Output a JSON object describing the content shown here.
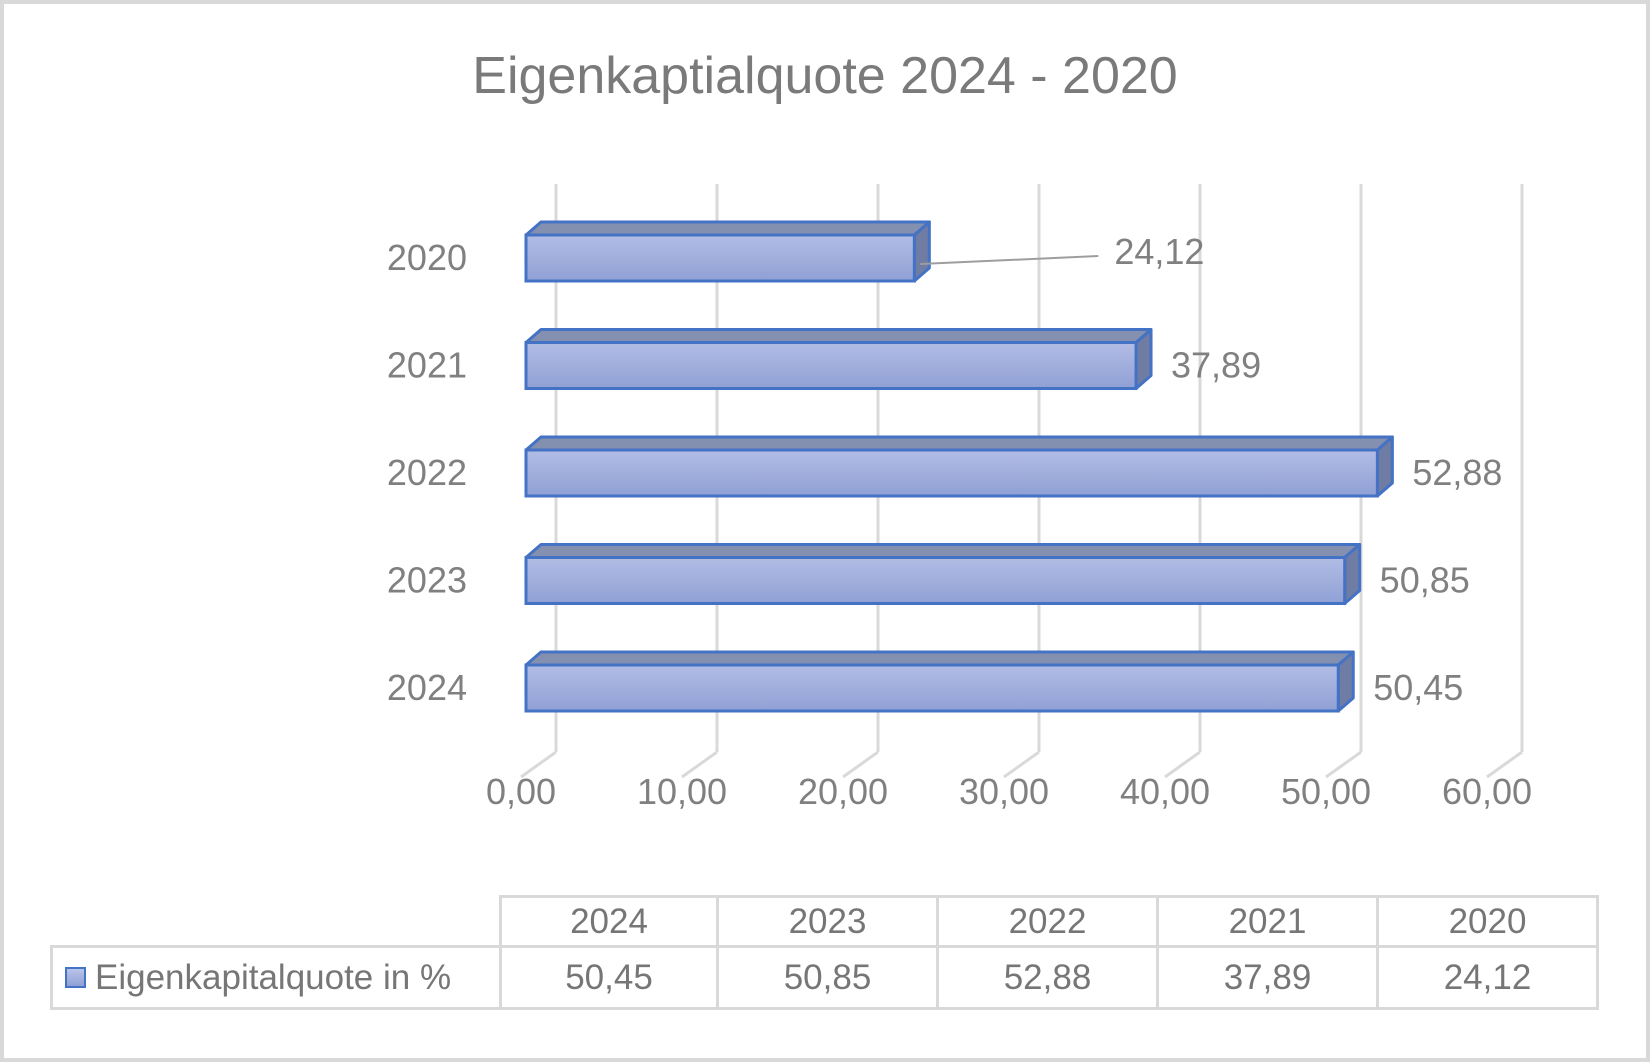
{
  "title": "Eigenkaptialquote 2024 - 2020",
  "colors": {
    "accent_blue": "#4472C4",
    "bar_face_top": "#B2BDE5",
    "bar_face_bottom": "#90A0D5",
    "bar_top_face": "#8490B0",
    "bar_side_face": "#6F7CA3",
    "gridline": "#D9D9D9",
    "label_gray": "#808080",
    "title_gray": "#7A7A7A",
    "leader_line_gray": "#9E9E9E"
  },
  "chart_data": {
    "type": "bar",
    "orientation": "horizontal",
    "style": "3d",
    "title": "Eigenkaptialquote 2024 - 2020",
    "categories": [
      "2020",
      "2021",
      "2022",
      "2023",
      "2024"
    ],
    "series": [
      {
        "name": "Eigenkapitalquote in %",
        "values": [
          24.12,
          37.89,
          52.88,
          50.85,
          50.45
        ]
      }
    ],
    "value_labels": [
      "24,12",
      "37,89",
      "52,88",
      "50,85",
      "50,45"
    ],
    "xlabel": "",
    "ylabel": "",
    "axis": {
      "min": 0,
      "max": 60,
      "step": 10,
      "tick_labels": [
        "0,00",
        "10,00",
        "20,00",
        "30,00",
        "40,00",
        "50,00",
        "60,00"
      ]
    },
    "grid": true,
    "legend_position": "table-bottom",
    "leader_label_index": 0
  },
  "table": {
    "columns": [
      "2024",
      "2023",
      "2022",
      "2021",
      "2020"
    ],
    "legend_label": "Eigenkapitalquote in %",
    "values": [
      "50,45",
      "50,85",
      "52,88",
      "37,89",
      "24,12"
    ]
  }
}
